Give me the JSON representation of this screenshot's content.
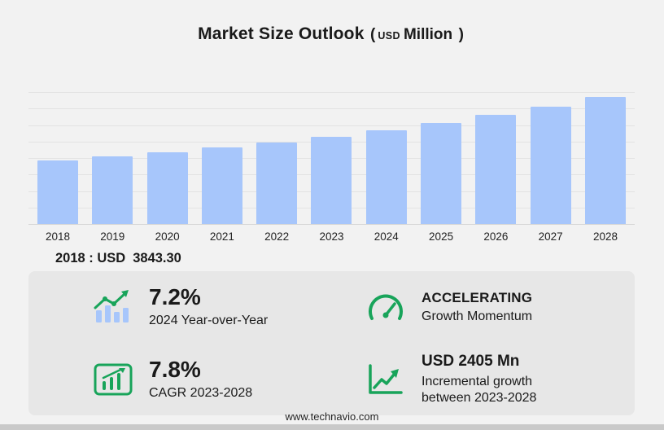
{
  "title": {
    "main": "Market Size Outlook",
    "paren_open": "(",
    "currency": "USD",
    "unit": "Million",
    "paren_close": ")"
  },
  "chart_data": {
    "type": "bar",
    "title": "Market Size Outlook (USD Million)",
    "categories": [
      "2018",
      "2019",
      "2020",
      "2021",
      "2022",
      "2023",
      "2024",
      "2025",
      "2026",
      "2027",
      "2028"
    ],
    "values": [
      3843.3,
      4095,
      4363,
      4649,
      4953,
      5278,
      5658,
      6108,
      6594,
      7119,
      7683
    ],
    "xlabel": "",
    "ylabel": "",
    "ylim": [
      0,
      8000
    ],
    "grid_step": 1000,
    "grid": true,
    "legend": "none",
    "bar_color": "#a7c6fb"
  },
  "annotation": {
    "year_label": "2018 : USD",
    "value": "3843.30"
  },
  "stats": {
    "yoy": {
      "icon": "yoy-bars-icon",
      "value": "7.2%",
      "label": "2024 Year-over-Year"
    },
    "momentum": {
      "icon": "speedometer-icon",
      "value": "ACCELERATING",
      "label": "Growth Momentum"
    },
    "cagr": {
      "icon": "cagr-chart-icon",
      "value": "7.8%",
      "label": "CAGR 2023-2028"
    },
    "incremental": {
      "icon": "incremental-growth-icon",
      "value": "USD 2405 Mn",
      "label": "Incremental growth between 2023-2028"
    }
  },
  "footer": {
    "url": "www.technavio.com"
  },
  "colors": {
    "accent_green": "#18a45a",
    "bar_blue": "#a7c6fb",
    "panel_gray": "#e7e7e7",
    "background": "#f2f2f2"
  }
}
